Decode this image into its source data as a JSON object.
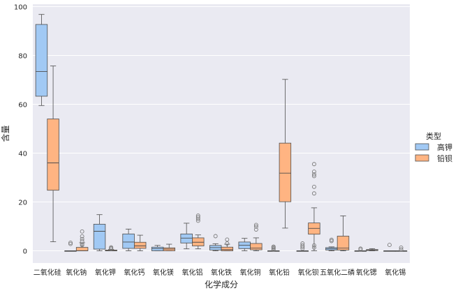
{
  "chart_data": {
    "type": "box",
    "title": "",
    "xlabel": "化学成分",
    "ylabel": "含量",
    "ylim": [
      -5,
      101
    ],
    "yticks": [
      0,
      20,
      40,
      60,
      80,
      100
    ],
    "grid": true,
    "legend": {
      "title": "类型",
      "position": "right",
      "entries": [
        "高钾",
        "铅钡"
      ]
    },
    "colors": {
      "高钾": "#a1c9f4",
      "铅钡": "#ffb482",
      "background": "#eaeaf2",
      "edge": "#4d4d4d"
    },
    "categories": [
      "二氧化硅",
      "氧化钠",
      "氧化钾",
      "氧化钙",
      "氧化镁",
      "氧化铝",
      "氧化铁",
      "氧化铜",
      "氧化铅",
      "氧化钡",
      "五氧化二磷",
      "氧化锶",
      "氧化锡"
    ],
    "series": [
      {
        "name": "高钾",
        "boxes": [
          {
            "whislo": 59.5,
            "q1": 63.3,
            "med": 73.4,
            "q3": 92.7,
            "whishi": 96.8,
            "fliers": []
          },
          {
            "whislo": 0,
            "q1": 0,
            "med": 0,
            "q3": 0,
            "whishi": 0,
            "fliers": [
              2.8,
              3.3
            ]
          },
          {
            "whislo": 0,
            "q1": 0.7,
            "med": 8.0,
            "q3": 10.9,
            "whishi": 14.8,
            "fliers": []
          },
          {
            "whislo": 0,
            "q1": 1.0,
            "med": 3.6,
            "q3": 6.9,
            "whishi": 8.9,
            "fliers": []
          },
          {
            "whislo": 0,
            "q1": 0,
            "med": 0.9,
            "q3": 1.5,
            "whishi": 2.2,
            "fliers": []
          },
          {
            "whislo": 0.8,
            "q1": 3.2,
            "med": 5.2,
            "q3": 6.9,
            "whishi": 11.3,
            "fliers": []
          },
          {
            "whislo": 0,
            "q1": 0.3,
            "med": 1.3,
            "q3": 2.2,
            "whishi": 2.9,
            "fliers": [
              6.0
            ]
          },
          {
            "whislo": 0,
            "q1": 0.9,
            "med": 2.3,
            "q3": 3.6,
            "whishi": 5.1,
            "fliers": []
          },
          {
            "whislo": 0,
            "q1": 0,
            "med": 0,
            "q3": 0,
            "whishi": 0,
            "fliers": [
              0.6,
              1.0,
              1.4,
              1.7
            ]
          },
          {
            "whislo": 0,
            "q1": 0,
            "med": 0,
            "q3": 0,
            "whishi": 0,
            "fliers": [
              0.9,
              1.6,
              2.2,
              3.0
            ]
          },
          {
            "whislo": 0,
            "q1": 0.3,
            "med": 0.8,
            "q3": 1.3,
            "whishi": 1.6,
            "fliers": [
              4.5,
              4.0
            ]
          },
          {
            "whislo": 0,
            "q1": 0,
            "med": 0,
            "q3": 0,
            "whishi": 0,
            "fliers": [
              0.5,
              0.9
            ]
          },
          {
            "whislo": 0,
            "q1": 0,
            "med": 0,
            "q3": 0,
            "whishi": 0,
            "fliers": [
              2.4
            ]
          }
        ]
      },
      {
        "name": "铅钡",
        "boxes": [
          {
            "whislo": 3.7,
            "q1": 24.8,
            "med": 36.0,
            "q3": 54.0,
            "whishi": 75.7,
            "fliers": []
          },
          {
            "whislo": 0,
            "q1": 0,
            "med": 0,
            "q3": 1.4,
            "whishi": 3.3,
            "fliers": [
              3.9,
              4.8,
              5.9,
              7.9,
              2.3,
              2.7
            ]
          },
          {
            "whislo": 0,
            "q1": 0,
            "med": 0,
            "q3": 0.3,
            "whishi": 0.6,
            "fliers": [
              0.8,
              1.1,
              1.4
            ]
          },
          {
            "whislo": 0,
            "q1": 1.0,
            "med": 2.0,
            "q3": 3.5,
            "whishi": 6.4,
            "fliers": []
          },
          {
            "whislo": 0,
            "q1": 0,
            "med": 0.7,
            "q3": 1.2,
            "whishi": 2.7,
            "fliers": []
          },
          {
            "whislo": 0.8,
            "q1": 2.0,
            "med": 3.5,
            "q3": 5.3,
            "whishi": 6.5,
            "fliers": [
              12.3,
              13.1,
              13.8,
              14.4
            ]
          },
          {
            "whislo": 0,
            "q1": 0,
            "med": 0.5,
            "q3": 1.5,
            "whishi": 2.7,
            "fliers": [
              3.0,
              4.6
            ]
          },
          {
            "whislo": 0,
            "q1": 0.4,
            "med": 1.1,
            "q3": 3.0,
            "whishi": 5.3,
            "fliers": [
              8.7,
              9.9,
              10.6
            ]
          },
          {
            "whislo": 9.3,
            "q1": 20.1,
            "med": 31.8,
            "q3": 44.1,
            "whishi": 70.2,
            "fliers": []
          },
          {
            "whislo": 0,
            "q1": 6.8,
            "med": 9.2,
            "q3": 11.4,
            "whishi": 17.6,
            "fliers": [
              23.5,
              26.2,
              30.6,
              31.3,
              32.4,
              35.5,
              1.3,
              2.2
            ]
          },
          {
            "whislo": 0,
            "q1": 0.3,
            "med": 1.1,
            "q3": 6.0,
            "whishi": 14.3,
            "fliers": []
          },
          {
            "whislo": 0,
            "q1": 0.1,
            "med": 0.3,
            "q3": 0.5,
            "whishi": 0.9,
            "fliers": []
          },
          {
            "whislo": 0,
            "q1": 0,
            "med": 0,
            "q3": 0,
            "whishi": 0,
            "fliers": [
              0.5,
              1.3
            ]
          }
        ]
      }
    ]
  }
}
